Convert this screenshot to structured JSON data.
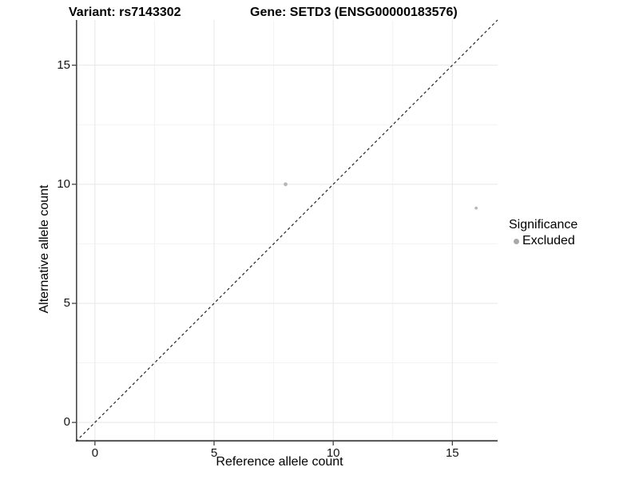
{
  "header": {
    "variant_title": "Variant: rs7143302",
    "gene_title": "Gene: SETD3 (ENSG00000183576)"
  },
  "chart_data": {
    "type": "scatter",
    "title": "Variant: rs7143302   Gene: SETD3 (ENSG00000183576)",
    "xlabel": "Reference allele count",
    "ylabel": "Alternative allele count",
    "xlim": [
      -0.8,
      16.9
    ],
    "ylim": [
      -0.8,
      16.9
    ],
    "x_ticks": [
      0,
      5,
      10,
      15
    ],
    "y_ticks": [
      0,
      5,
      10,
      15
    ],
    "x_minor_ticks": [
      2.5,
      7.5,
      12.5
    ],
    "y_minor_ticks": [
      2.5,
      7.5,
      12.5
    ],
    "grid": "major+minor",
    "series": [
      {
        "name": "Excluded",
        "points": [
          {
            "x": 8,
            "y": 10,
            "r": 2.4
          },
          {
            "x": 16,
            "y": 9,
            "r": 1.9
          }
        ]
      }
    ],
    "identity_line": {
      "slope": 1,
      "intercept": 0,
      "style": "dashed"
    },
    "legend": {
      "title": "Significance",
      "position": "right",
      "items": [
        {
          "label": "Excluded",
          "color": "#a9a9a9"
        }
      ]
    }
  },
  "colors": {
    "background": "#ffffff",
    "grid_major": "#e7e7e7",
    "grid_minor": "#f2f2f2",
    "axis_line": "#474747",
    "tick_mark": "#333333",
    "tick_text": "#141414",
    "point_fill": "#b7b7b7",
    "diagonal_line": "#222222",
    "legend_dot": "#a9a9a9"
  }
}
